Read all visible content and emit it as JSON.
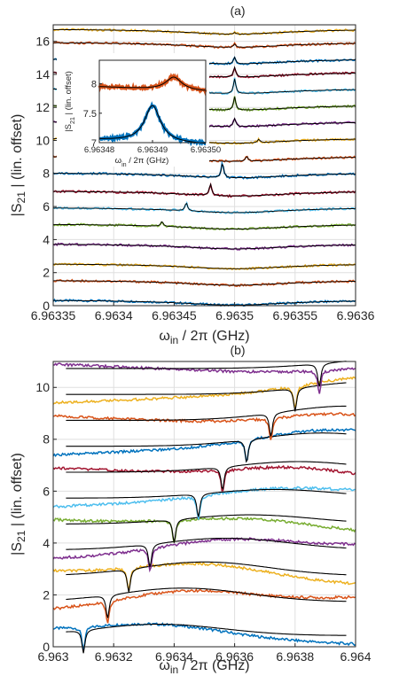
{
  "chart_data": [
    {
      "panel_label": "(a)",
      "type": "line",
      "xlabel": "ω_in / 2π (GHz)",
      "ylabel": "|S21| (lin. offset)",
      "xlim": [
        6.96335,
        6.9636
      ],
      "ylim": [
        0,
        17
      ],
      "xticks": [
        6.96335,
        6.9634,
        6.96345,
        6.9635,
        6.96355,
        6.9636
      ],
      "xtick_labels": [
        "6.96335",
        "6.9634",
        "6.96345",
        "6.9635",
        "6.96355",
        "6.9636"
      ],
      "yticks": [
        0,
        2,
        4,
        6,
        8,
        10,
        12,
        14,
        16
      ],
      "ytick_labels": [
        "0",
        "2",
        "4",
        "6",
        "8",
        "10",
        "12",
        "14",
        "16"
      ],
      "grid": true,
      "dip_x": 6.9635,
      "traces": [
        {
          "offset": 0.0,
          "color": "#0072BD",
          "peak_x": 6.9634,
          "amp": 0.0
        },
        {
          "offset": 1.2,
          "color": "#D95319",
          "peak_x": 6.96341,
          "amp": 0.0
        },
        {
          "offset": 2.2,
          "color": "#EDB120",
          "peak_x": 6.96342,
          "amp": 0.0
        },
        {
          "offset": 3.4,
          "color": "#7E2F8E",
          "peak_x": 6.96343,
          "amp": 0.0
        },
        {
          "offset": 4.6,
          "color": "#77AC30",
          "peak_x": 6.96344,
          "amp": 0.3
        },
        {
          "offset": 5.6,
          "color": "#4DBEEE",
          "peak_x": 6.96346,
          "amp": 0.5
        },
        {
          "offset": 6.6,
          "color": "#A2142F",
          "peak_x": 6.96348,
          "amp": 0.7
        },
        {
          "offset": 7.7,
          "color": "#0072BD",
          "peak_x": 6.96349,
          "amp": 0.9
        },
        {
          "offset": 8.7,
          "color": "#D95319",
          "peak_x": 6.96351,
          "amp": 0.3
        },
        {
          "offset": 9.8,
          "color": "#EDB120",
          "peak_x": 6.96352,
          "amp": 0.2
        },
        {
          "offset": 10.8,
          "color": "#7E2F8E",
          "peak_x": 6.9635,
          "amp": 0.5
        },
        {
          "offset": 11.8,
          "color": "#77AC30",
          "peak_x": 6.9635,
          "amp": 0.8
        },
        {
          "offset": 12.8,
          "color": "#4DBEEE",
          "peak_x": 6.9635,
          "amp": 0.9
        },
        {
          "offset": 13.8,
          "color": "#A2142F",
          "peak_x": 6.9635,
          "amp": 0.6
        },
        {
          "offset": 14.6,
          "color": "#0072BD",
          "peak_x": 6.9635,
          "amp": 0.4
        },
        {
          "offset": 15.6,
          "color": "#D95319",
          "peak_x": 6.9635,
          "amp": 0.2
        },
        {
          "offset": 16.4,
          "color": "#EDB120",
          "peak_x": 6.9635,
          "amp": 0.1
        }
      ],
      "inset": {
        "xlabel": "ω_in / 2π (GHz)",
        "ylabel": "|S21| (lin. offset)",
        "xlim": [
          6.96348,
          6.9635
        ],
        "ylim": [
          7,
          8.4
        ],
        "xticks": [
          6.96348,
          6.96349,
          6.9635
        ],
        "xtick_labels": [
          "6.96348",
          "6.96349",
          "6.96350"
        ],
        "yticks": [
          7,
          7.5,
          8
        ],
        "ytick_labels": [
          "7",
          "7.5",
          "8"
        ],
        "traces": [
          {
            "color": "#D95319",
            "base": 7.95,
            "peak_x": 6.963494,
            "amp": 0.22
          },
          {
            "color": "#0072BD",
            "base": 7.05,
            "peak_x": 6.96349,
            "amp": 0.62
          }
        ]
      }
    },
    {
      "panel_label": "(b)",
      "type": "line",
      "xlabel": "ω_in / 2π (GHz)",
      "ylabel": "|S21| (lin. offset)",
      "xlim": [
        6.963,
        6.964
      ],
      "ylim": [
        0,
        11
      ],
      "xticks": [
        6.963,
        6.9632,
        6.9634,
        6.9636,
        6.9638,
        6.964
      ],
      "xtick_labels": [
        "6.963",
        "6.9632",
        "6.9634",
        "6.9636",
        "6.9638",
        "6.964"
      ],
      "yticks": [
        0,
        2,
        4,
        6,
        8,
        10
      ],
      "ytick_labels": [
        "0",
        "2",
        "4",
        "6",
        "8",
        "10"
      ],
      "grid": true,
      "traces": [
        {
          "offset": 0.0,
          "color": "#0072BD",
          "dip_x": 6.9631
        },
        {
          "offset": 1.3,
          "color": "#D95319",
          "dip_x": 6.96318
        },
        {
          "offset": 2.3,
          "color": "#EDB120",
          "dip_x": 6.96325
        },
        {
          "offset": 3.3,
          "color": "#7E2F8E",
          "dip_x": 6.96332
        },
        {
          "offset": 4.3,
          "color": "#77AC30",
          "dip_x": 6.9634
        },
        {
          "offset": 5.3,
          "color": "#4DBEEE",
          "dip_x": 6.96348
        },
        {
          "offset": 6.3,
          "color": "#A2142F",
          "dip_x": 6.96356
        },
        {
          "offset": 7.3,
          "color": "#0072BD",
          "dip_x": 6.96364
        },
        {
          "offset": 8.3,
          "color": "#D95319",
          "dip_x": 6.96372
        },
        {
          "offset": 9.3,
          "color": "#EDB120",
          "dip_x": 6.9638
        },
        {
          "offset": 10.3,
          "color": "#7E2F8E",
          "dip_x": 6.96388
        }
      ]
    }
  ]
}
